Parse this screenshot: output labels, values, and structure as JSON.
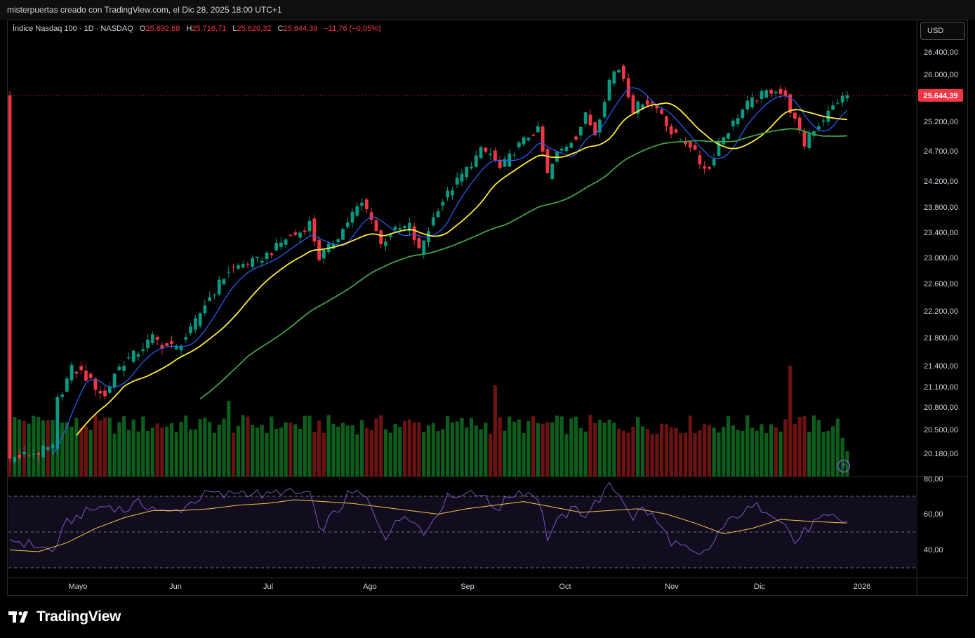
{
  "header": {
    "text": "misterpuertas creado con TradingView.com, el Dic 28, 2025 18:00 UTC+1"
  },
  "legend": {
    "symbol": "Índice Nasdaq 100 · 1D · NASDAQ",
    "o_label": "O",
    "o_value": "25.692,68",
    "h_label": "H",
    "h_value": "25.716,71",
    "l_label": "L",
    "l_value": "25.620,32",
    "c_label": "C",
    "c_value": "25.644,39",
    "change": "−11,76 (−0,05%)"
  },
  "currency_button": "USD",
  "footer": {
    "brand": "TradingView",
    "logo_icon": "tradingview-logo-icon"
  },
  "colors": {
    "up": "#089981",
    "down": "#f23645",
    "vol_up": "#0d5e1c",
    "vol_down": "#6b1212",
    "ema_fast": "#2962ff",
    "ema_mid": "#ffeb3b",
    "ema_slow": "#43a047",
    "rsi": "#7e57c2",
    "rsi_ma": "#f5c542",
    "last_price": "#f23645"
  },
  "chart_data": {
    "type": "candlestick",
    "symbol": "Índice Nasdaq 100",
    "interval": "1D",
    "last_price_label": "25.644,39",
    "price_axis_labels": [
      "26.400,00",
      "26.000,00",
      "25.200,00",
      "24.700,00",
      "24.200,00",
      "23.800,00",
      "23.400,00",
      "23.000,00",
      "22.600,00",
      "22.200,00",
      "21.800,00",
      "21.400,00",
      "21.100,00",
      "20.800,00",
      "20.500,00",
      "20.180,00"
    ],
    "price_axis_values": [
      26400,
      26000,
      25200,
      24700,
      24200,
      23800,
      23400,
      23000,
      22600,
      22200,
      21800,
      21400,
      21100,
      20800,
      20500,
      20180
    ],
    "x_axis_labels": [
      "Mayo",
      "Jun",
      "Jul",
      "Ago",
      "Sep",
      "Oct",
      "Nov",
      "Dic",
      "2026"
    ],
    "close_path": [
      [
        0,
        20100
      ],
      [
        9,
        20250
      ],
      [
        10,
        20900
      ],
      [
        13,
        21350
      ],
      [
        15,
        21300
      ],
      [
        18,
        21100
      ],
      [
        20,
        20950
      ],
      [
        22,
        21300
      ],
      [
        24,
        21450
      ],
      [
        27,
        21600
      ],
      [
        30,
        21800
      ],
      [
        32,
        21700
      ],
      [
        35,
        21650
      ],
      [
        38,
        21900
      ],
      [
        41,
        22300
      ],
      [
        44,
        22600
      ],
      [
        46,
        22800
      ],
      [
        49,
        22900
      ],
      [
        52,
        22950
      ],
      [
        55,
        23100
      ],
      [
        58,
        23300
      ],
      [
        61,
        23400
      ],
      [
        63,
        23550
      ],
      [
        65,
        23000
      ],
      [
        67,
        23150
      ],
      [
        70,
        23450
      ],
      [
        72,
        23700
      ],
      [
        74,
        23850
      ],
      [
        76,
        23650
      ],
      [
        78,
        23200
      ],
      [
        80,
        23400
      ],
      [
        82,
        23450
      ],
      [
        84,
        23500
      ],
      [
        86,
        23100
      ],
      [
        88,
        23450
      ],
      [
        90,
        23800
      ],
      [
        92,
        24000
      ],
      [
        95,
        24300
      ],
      [
        97,
        24500
      ],
      [
        99,
        24700
      ],
      [
        101,
        24650
      ],
      [
        103,
        24400
      ],
      [
        105,
        24600
      ],
      [
        107,
        24800
      ],
      [
        109,
        24950
      ],
      [
        111,
        25050
      ],
      [
        113,
        24300
      ],
      [
        115,
        24650
      ],
      [
        117,
        24800
      ],
      [
        119,
        24950
      ],
      [
        121,
        25300
      ],
      [
        123,
        25000
      ],
      [
        125,
        25600
      ],
      [
        126,
        25900
      ],
      [
        127,
        26050
      ],
      [
        128,
        26100
      ],
      [
        129,
        25950
      ],
      [
        131,
        25400
      ],
      [
        133,
        25550
      ],
      [
        135,
        25500
      ],
      [
        137,
        25350
      ],
      [
        139,
        25000
      ],
      [
        141,
        24900
      ],
      [
        143,
        24800
      ],
      [
        145,
        24500
      ],
      [
        147,
        24400
      ],
      [
        149,
        24850
      ],
      [
        151,
        25050
      ],
      [
        153,
        25300
      ],
      [
        155,
        25500
      ],
      [
        157,
        25600
      ],
      [
        159,
        25700
      ],
      [
        161,
        25750
      ],
      [
        163,
        25600
      ],
      [
        165,
        25200
      ],
      [
        167,
        24800
      ],
      [
        168,
        25000
      ],
      [
        170,
        25150
      ],
      [
        172,
        25350
      ],
      [
        174,
        25550
      ],
      [
        176,
        25644
      ]
    ],
    "volume_range": [
      0,
      1
    ],
    "rsi": {
      "axis_labels": [
        "80,00",
        "60,00",
        "40,00"
      ],
      "axis_values": [
        80,
        60,
        40
      ],
      "upper_band": 70,
      "mid_band": 50,
      "lower_band": 30,
      "path": [
        [
          0,
          46
        ],
        [
          3,
          44
        ],
        [
          6,
          42
        ],
        [
          9,
          39
        ],
        [
          12,
          55
        ],
        [
          15,
          60
        ],
        [
          18,
          63
        ],
        [
          21,
          65
        ],
        [
          24,
          62
        ],
        [
          27,
          66
        ],
        [
          30,
          64
        ],
        [
          33,
          60
        ],
        [
          36,
          63
        ],
        [
          39,
          68
        ],
        [
          42,
          72
        ],
        [
          45,
          70
        ],
        [
          48,
          73
        ],
        [
          51,
          72
        ],
        [
          54,
          70
        ],
        [
          57,
          73
        ],
        [
          60,
          71
        ],
        [
          63,
          72
        ],
        [
          65,
          50
        ],
        [
          67,
          57
        ],
        [
          69,
          62
        ],
        [
          71,
          70
        ],
        [
          73,
          72
        ],
        [
          75,
          68
        ],
        [
          77,
          58
        ],
        [
          79,
          48
        ],
        [
          81,
          54
        ],
        [
          83,
          60
        ],
        [
          85,
          58
        ],
        [
          87,
          48
        ],
        [
          89,
          58
        ],
        [
          91,
          66
        ],
        [
          93,
          72
        ],
        [
          95,
          70
        ],
        [
          97,
          74
        ],
        [
          99,
          71
        ],
        [
          101,
          65
        ],
        [
          103,
          64
        ],
        [
          105,
          70
        ],
        [
          107,
          73
        ],
        [
          109,
          72
        ],
        [
          111,
          70
        ],
        [
          113,
          47
        ],
        [
          115,
          55
        ],
        [
          117,
          60
        ],
        [
          119,
          63
        ],
        [
          121,
          60
        ],
        [
          123,
          66
        ],
        [
          125,
          72
        ],
        [
          126,
          75
        ],
        [
          127,
          74
        ],
        [
          129,
          68
        ],
        [
          131,
          58
        ],
        [
          133,
          63
        ],
        [
          135,
          59
        ],
        [
          137,
          52
        ],
        [
          139,
          45
        ],
        [
          141,
          42
        ],
        [
          143,
          38
        ],
        [
          145,
          36
        ],
        [
          147,
          40
        ],
        [
          149,
          50
        ],
        [
          151,
          55
        ],
        [
          153,
          60
        ],
        [
          155,
          62
        ],
        [
          157,
          64
        ],
        [
          159,
          63
        ],
        [
          161,
          60
        ],
        [
          163,
          54
        ],
        [
          165,
          44
        ],
        [
          167,
          50
        ],
        [
          169,
          55
        ],
        [
          171,
          57
        ],
        [
          173,
          58
        ],
        [
          175,
          56
        ],
        [
          176,
          56
        ]
      ],
      "ma_path": [
        [
          0,
          40
        ],
        [
          6,
          39
        ],
        [
          12,
          44
        ],
        [
          18,
          52
        ],
        [
          24,
          58
        ],
        [
          30,
          62
        ],
        [
          36,
          62
        ],
        [
          42,
          63
        ],
        [
          48,
          65
        ],
        [
          54,
          66
        ],
        [
          60,
          68
        ],
        [
          66,
          67
        ],
        [
          72,
          66
        ],
        [
          78,
          64
        ],
        [
          84,
          62
        ],
        [
          90,
          60
        ],
        [
          96,
          63
        ],
        [
          102,
          65
        ],
        [
          108,
          67
        ],
        [
          114,
          64
        ],
        [
          120,
          61
        ],
        [
          126,
          62
        ],
        [
          132,
          63
        ],
        [
          138,
          60
        ],
        [
          144,
          55
        ],
        [
          150,
          49
        ],
        [
          156,
          52
        ],
        [
          162,
          57
        ],
        [
          168,
          56
        ],
        [
          176,
          55
        ]
      ]
    }
  }
}
